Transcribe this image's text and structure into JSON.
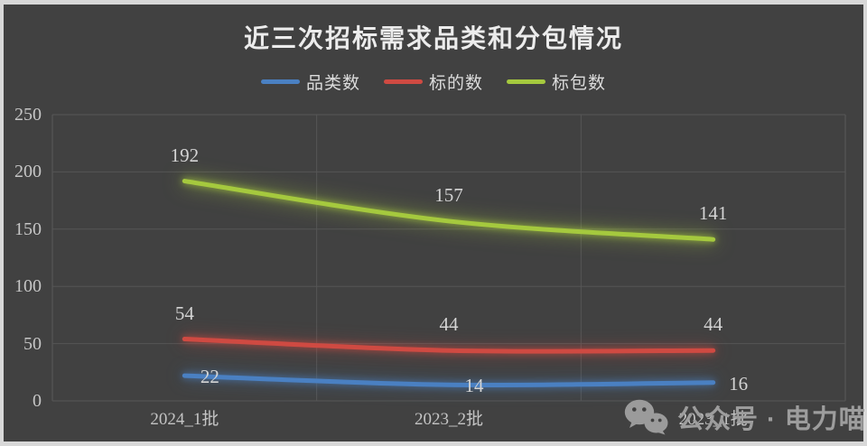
{
  "chart_data": {
    "type": "line",
    "title": "近三次招标需求品类和分包情况",
    "categories": [
      "2024_1批",
      "2023_2批",
      "2023_1批"
    ],
    "series": [
      {
        "name": "品类数",
        "color": "#4a80c2",
        "values": [
          22,
          14,
          16
        ],
        "label_position": "right"
      },
      {
        "name": "标的数",
        "color": "#cf4a42",
        "values": [
          54,
          44,
          44
        ],
        "label_position": "above"
      },
      {
        "name": "标包数",
        "color": "#a5c93e",
        "values": [
          192,
          157,
          141
        ],
        "label_position": "above"
      }
    ],
    "ylim": [
      0,
      250
    ],
    "ytick_step": 50,
    "yticks": [
      0,
      50,
      100,
      150,
      200,
      250
    ],
    "grid": true,
    "legend_position": "top",
    "background_color": "#414141",
    "gridline_color": "#565656",
    "smoothed_lines": true
  },
  "watermark": {
    "icon": "wechat-icon",
    "text": "公众号 · 电力喵"
  }
}
